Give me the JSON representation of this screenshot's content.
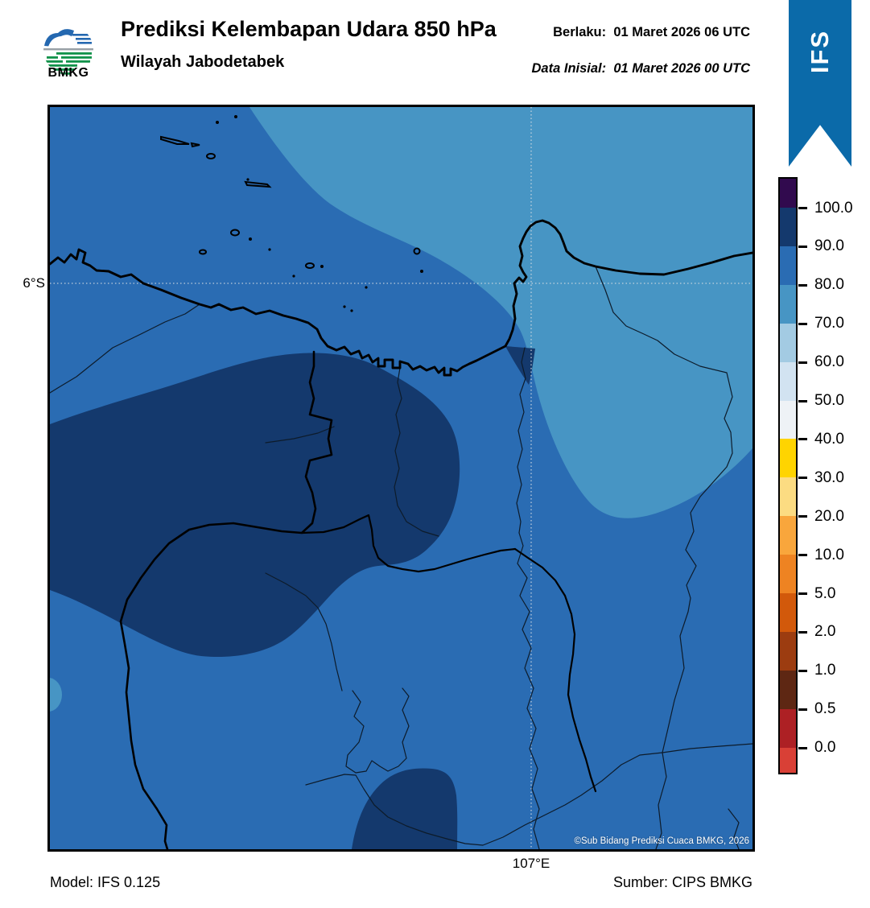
{
  "header": {
    "title": "Prediksi Kelembapan Udara 850 hPa",
    "subtitle": "Wilayah Jabodetabek",
    "valid_label": "Berlaku:",
    "valid_value": "01 Maret 2026 06 UTC",
    "init_label": "Data Inisial:",
    "init_value": "01 Maret 2026 00 UTC",
    "logo_text": "BMKG",
    "ribbon_label": "IFS"
  },
  "map": {
    "lat_label": "6°S",
    "lon_label": "107°E",
    "copyright": "©Sub Bidang Prediksi Cuaca BMKG, 2026"
  },
  "footer": {
    "model": "Model: IFS 0.125",
    "source": "Sumber: CIPS BMKG"
  },
  "colors": {
    "ribbon_blue": "#0b6aa9",
    "field_80_90": "#2a6cb3",
    "field_70_80": "#4795c4",
    "field_90_100": "#14396d"
  },
  "chart_data": {
    "type": "heatmap",
    "title": "Prediksi Kelembapan Udara 850 hPa",
    "region": "Wilayah Jabodetabek",
    "variable": "Relative humidity at 850 hPa (%)",
    "model": "IFS 0.125",
    "source": "CIPS BMKG",
    "valid_time": "01 Maret 2026 06 UTC",
    "init_time": "01 Maret 2026 00 UTC",
    "gridlines": {
      "lat": [
        "6°S"
      ],
      "lon": [
        "107°E"
      ]
    },
    "colorbar": {
      "tick_labels": [
        "100.0",
        "90.0",
        "80.0",
        "70.0",
        "60.0",
        "50.0",
        "40.0",
        "30.0",
        "20.0",
        "10.0",
        "5.0",
        "2.0",
        "1.0",
        "0.5",
        "0.0"
      ],
      "segment_colors_top_to_bottom": [
        "#310a4e",
        "#14396d",
        "#2a6cb3",
        "#4795c4",
        "#a3cbe3",
        "#d2e3f1",
        "#eef2f6",
        "#ffd400",
        "#fcdc82",
        "#f9a63c",
        "#ee8322",
        "#d2590b",
        "#9c3c10",
        "#5e2713",
        "#ad2024",
        "#d94036"
      ]
    },
    "field_regions": [
      {
        "range_percent": "90-100",
        "color": "#14396d",
        "where": "large kidney-shaped blob over west-central land, small blob at bottom-center, small wedge southeast of the bay"
      },
      {
        "range_percent": "80-90",
        "color": "#2a6cb3",
        "where": "background field covering most of the sea and land"
      },
      {
        "range_percent": "70-80",
        "color": "#4795c4",
        "where": "northeast sea and eastern land bulge, tiny patch at west map edge"
      }
    ]
  }
}
